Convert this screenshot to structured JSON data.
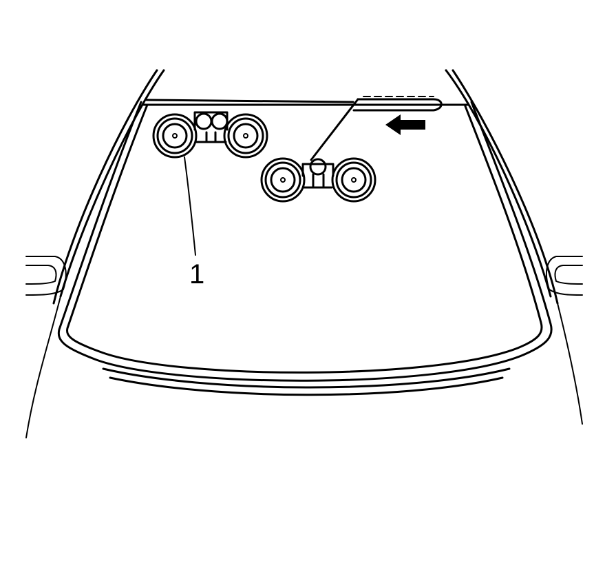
{
  "figure": {
    "callouts": [
      {
        "id": "1",
        "label": "1",
        "target": "suction-cup-tool-left"
      }
    ],
    "arrow": {
      "direction": "left",
      "meaning": "direction-of-removal"
    }
  },
  "colors": {
    "line": "#000000",
    "background": "#ffffff"
  }
}
